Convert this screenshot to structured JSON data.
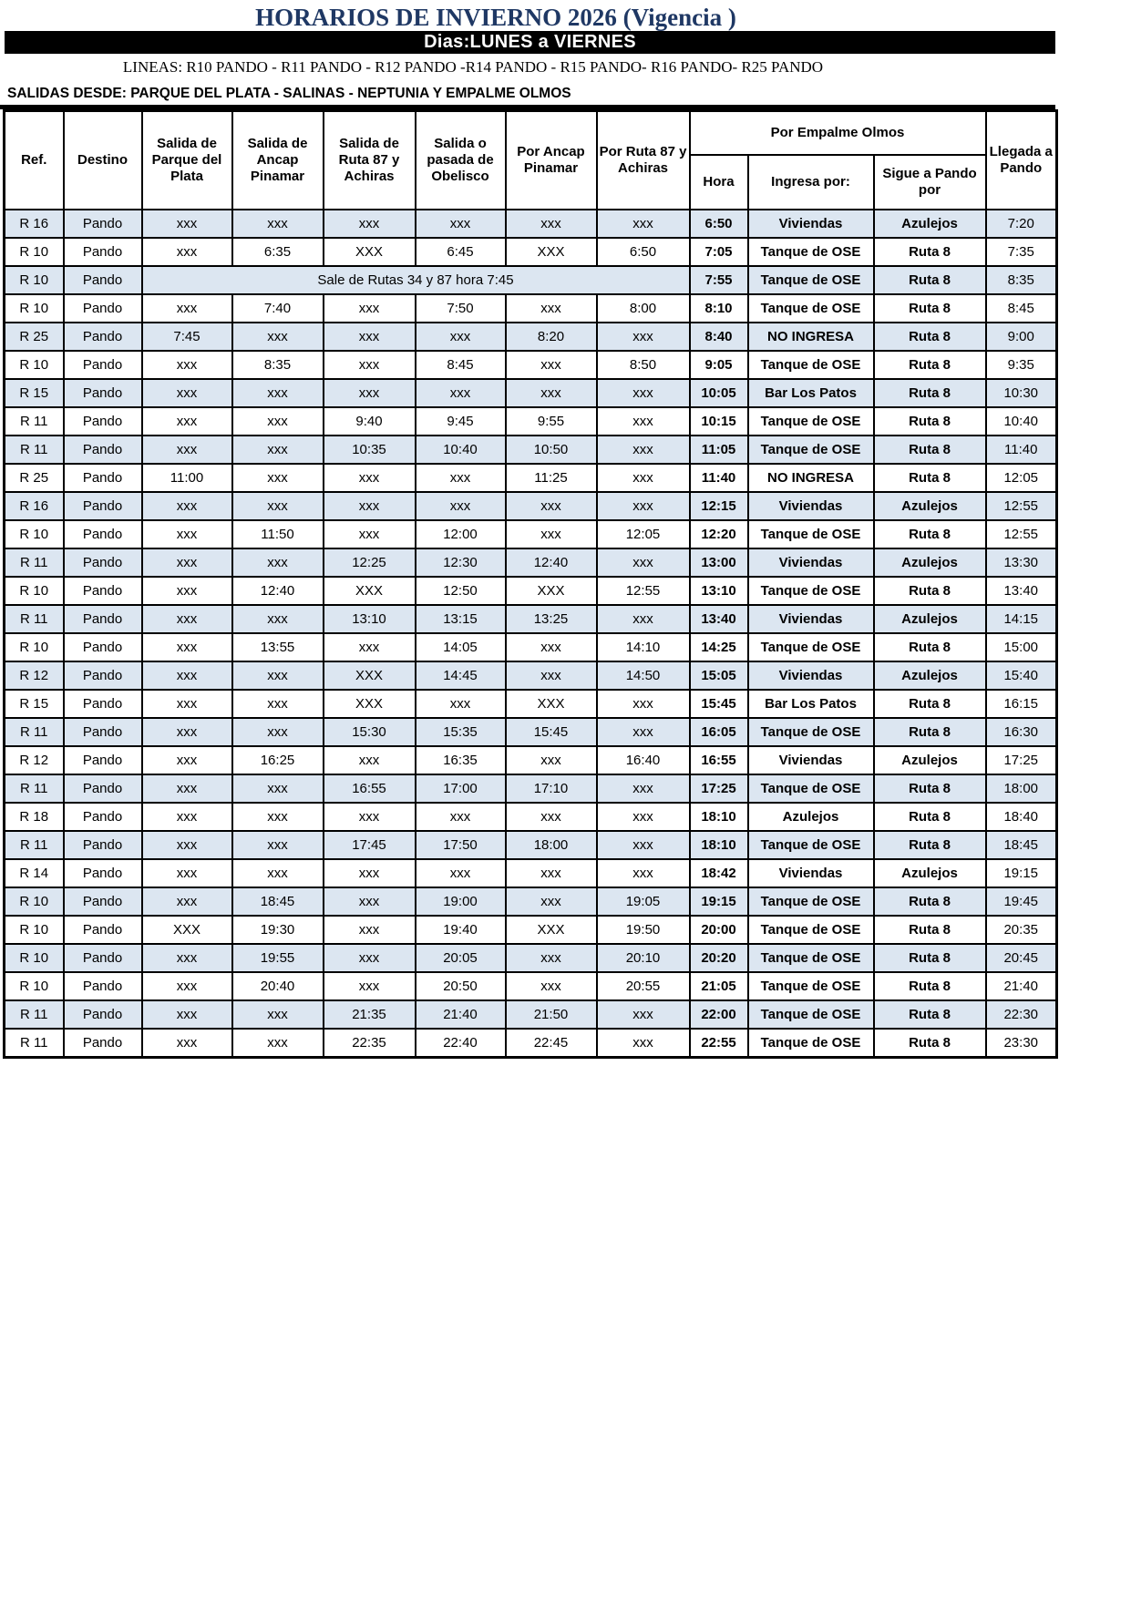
{
  "colors": {
    "title_text": "#1F3864",
    "banner_background": "#000000",
    "banner_text": "#FFFFFF",
    "row_stripe": "#DCE6F1",
    "table_border": "#000000"
  },
  "header": {
    "title": "HORARIOS DE INVIERNO 2026 (Vigencia )",
    "days_banner": "Dias:LUNES a VIERNES",
    "lines": "LINEAS: R10 PANDO - R11 PANDO - R12 PANDO -R14 PANDO - R15 PANDO- R16 PANDO- R25 PANDO",
    "salidas": "SALIDAS DESDE: PARQUE DEL PLATA - SALINAS - NEPTUNIA Y EMPALME OLMOS"
  },
  "table": {
    "headers": {
      "ref": "Ref.",
      "destino": "Destino",
      "salida_parque": "Salida de Parque del Plata",
      "salida_ancap": "Salida de Ancap Pinamar",
      "salida_ruta87": "Salida de Ruta 87 y Achiras",
      "salida_obelisco": "Salida o pasada de Obelisco",
      "por_ancap": "Por Ancap Pinamar",
      "por_ruta87": "Por Ruta 87 y Achiras",
      "por_empalme_group": "Por Empalme Olmos",
      "hora": "Hora",
      "ingresa": "Ingresa por:",
      "sigue": "Sigue a Pando por",
      "llegada": "Llegada a Pando"
    },
    "rows": [
      {
        "ref": "R 16",
        "destino": "Pando",
        "salida_parque": "xxx",
        "salida_ancap": "xxx",
        "salida_ruta87": "xxx",
        "salida_obelisco": "xxx",
        "por_ancap": "xxx",
        "por_ruta87": "xxx",
        "hora": "6:50",
        "ingresa": "Viviendas",
        "sigue": "Azulejos",
        "llegada": "7:20"
      },
      {
        "ref": "R 10",
        "destino": "Pando",
        "salida_parque": "xxx",
        "salida_ancap": "6:35",
        "salida_ruta87": "XXX",
        "salida_obelisco": "6:45",
        "por_ancap": "XXX",
        "por_ruta87": "6:50",
        "hora": "7:05",
        "ingresa": "Tanque de OSE",
        "sigue": "Ruta 8",
        "llegada": "7:35"
      },
      {
        "ref": "R 10",
        "destino": "Pando",
        "merged_note": "Sale de Rutas 34 y 87 hora 7:45",
        "hora": "7:55",
        "ingresa": "Tanque de OSE",
        "sigue": "Ruta 8",
        "llegada": "8:35"
      },
      {
        "ref": "R 10",
        "destino": "Pando",
        "salida_parque": "xxx",
        "salida_ancap": "7:40",
        "salida_ruta87": "xxx",
        "salida_obelisco": "7:50",
        "por_ancap": "xxx",
        "por_ruta87": "8:00",
        "hora": "8:10",
        "ingresa": "Tanque de OSE",
        "sigue": "Ruta 8",
        "llegada": "8:45"
      },
      {
        "ref": "R 25",
        "destino": "Pando",
        "salida_parque": "7:45",
        "salida_ancap": "xxx",
        "salida_ruta87": "xxx",
        "salida_obelisco": "xxx",
        "por_ancap": "8:20",
        "por_ruta87": "xxx",
        "hora": "8:40",
        "ingresa": "NO INGRESA",
        "sigue": "Ruta 8",
        "llegada": "9:00"
      },
      {
        "ref": "R 10",
        "destino": "Pando",
        "salida_parque": "xxx",
        "salida_ancap": "8:35",
        "salida_ruta87": "xxx",
        "salida_obelisco": "8:45",
        "por_ancap": "xxx",
        "por_ruta87": "8:50",
        "hora": "9:05",
        "ingresa": "Tanque de OSE",
        "sigue": "Ruta 8",
        "llegada": "9:35"
      },
      {
        "ref": "R 15",
        "destino": "Pando",
        "salida_parque": "xxx",
        "salida_ancap": "xxx",
        "salida_ruta87": "xxx",
        "salida_obelisco": "xxx",
        "por_ancap": "xxx",
        "por_ruta87": "xxx",
        "hora": "10:05",
        "ingresa": "Bar Los Patos",
        "sigue": "Ruta 8",
        "llegada": "10:30"
      },
      {
        "ref": "R 11",
        "destino": "Pando",
        "salida_parque": "xxx",
        "salida_ancap": "xxx",
        "salida_ruta87": "9:40",
        "salida_obelisco": "9:45",
        "por_ancap": "9:55",
        "por_ruta87": "xxx",
        "hora": "10:15",
        "ingresa": "Tanque de OSE",
        "sigue": "Ruta 8",
        "llegada": "10:40"
      },
      {
        "ref": "R 11",
        "destino": "Pando",
        "salida_parque": "xxx",
        "salida_ancap": "xxx",
        "salida_ruta87": "10:35",
        "salida_obelisco": "10:40",
        "por_ancap": "10:50",
        "por_ruta87": "xxx",
        "hora": "11:05",
        "ingresa": "Tanque de OSE",
        "sigue": "Ruta 8",
        "llegada": "11:40"
      },
      {
        "ref": "R 25",
        "destino": "Pando",
        "salida_parque": "11:00",
        "salida_ancap": "xxx",
        "salida_ruta87": "xxx",
        "salida_obelisco": "xxx",
        "por_ancap": "11:25",
        "por_ruta87": "xxx",
        "hora": "11:40",
        "ingresa": "NO INGRESA",
        "sigue": "Ruta 8",
        "llegada": "12:05"
      },
      {
        "ref": "R 16",
        "destino": "Pando",
        "salida_parque": "xxx",
        "salida_ancap": "xxx",
        "salida_ruta87": "xxx",
        "salida_obelisco": "xxx",
        "por_ancap": "xxx",
        "por_ruta87": "xxx",
        "hora": "12:15",
        "ingresa": "Viviendas",
        "sigue": "Azulejos",
        "llegada": "12:55"
      },
      {
        "ref": "R 10",
        "destino": "Pando",
        "salida_parque": "xxx",
        "salida_ancap": "11:50",
        "salida_ruta87": "xxx",
        "salida_obelisco": "12:00",
        "por_ancap": "xxx",
        "por_ruta87": "12:05",
        "hora": "12:20",
        "ingresa": "Tanque de OSE",
        "sigue": "Ruta 8",
        "llegada": "12:55"
      },
      {
        "ref": "R 11",
        "destino": "Pando",
        "salida_parque": "xxx",
        "salida_ancap": "xxx",
        "salida_ruta87": "12:25",
        "salida_obelisco": "12:30",
        "por_ancap": "12:40",
        "por_ruta87": "xxx",
        "hora": "13:00",
        "ingresa": "Viviendas",
        "sigue": "Azulejos",
        "llegada": "13:30"
      },
      {
        "ref": "R 10",
        "destino": "Pando",
        "salida_parque": "xxx",
        "salida_ancap": "12:40",
        "salida_ruta87": "XXX",
        "salida_obelisco": "12:50",
        "por_ancap": "XXX",
        "por_ruta87": "12:55",
        "hora": "13:10",
        "ingresa": "Tanque de OSE",
        "sigue": "Ruta 8",
        "llegada": "13:40"
      },
      {
        "ref": "R 11",
        "destino": "Pando",
        "salida_parque": "xxx",
        "salida_ancap": "xxx",
        "salida_ruta87": "13:10",
        "salida_obelisco": "13:15",
        "por_ancap": "13:25",
        "por_ruta87": "xxx",
        "hora": "13:40",
        "ingresa": "Viviendas",
        "sigue": "Azulejos",
        "llegada": "14:15"
      },
      {
        "ref": "R 10",
        "destino": "Pando",
        "salida_parque": "xxx",
        "salida_ancap": "13:55",
        "salida_ruta87": "xxx",
        "salida_obelisco": "14:05",
        "por_ancap": "xxx",
        "por_ruta87": "14:10",
        "hora": "14:25",
        "ingresa": "Tanque de OSE",
        "sigue": "Ruta 8",
        "llegada": "15:00"
      },
      {
        "ref": "R 12",
        "destino": "Pando",
        "salida_parque": "xxx",
        "salida_ancap": "xxx",
        "salida_ruta87": "XXX",
        "salida_obelisco": "14:45",
        "por_ancap": "xxx",
        "por_ruta87": "14:50",
        "hora": "15:05",
        "ingresa": "Viviendas",
        "sigue": "Azulejos",
        "llegada": "15:40"
      },
      {
        "ref": "R 15",
        "destino": "Pando",
        "salida_parque": "xxx",
        "salida_ancap": "xxx",
        "salida_ruta87": "XXX",
        "salida_obelisco": "xxx",
        "por_ancap": "XXX",
        "por_ruta87": "xxx",
        "hora": "15:45",
        "ingresa": "Bar Los Patos",
        "sigue": "Ruta 8",
        "llegada": "16:15"
      },
      {
        "ref": "R 11",
        "destino": "Pando",
        "salida_parque": "xxx",
        "salida_ancap": "xxx",
        "salida_ruta87": "15:30",
        "salida_obelisco": "15:35",
        "por_ancap": "15:45",
        "por_ruta87": "xxx",
        "hora": "16:05",
        "ingresa": "Tanque de OSE",
        "sigue": "Ruta 8",
        "llegada": "16:30"
      },
      {
        "ref": "R 12",
        "destino": "Pando",
        "salida_parque": "xxx",
        "salida_ancap": "16:25",
        "salida_ruta87": "xxx",
        "salida_obelisco": "16:35",
        "por_ancap": "xxx",
        "por_ruta87": "16:40",
        "hora": "16:55",
        "ingresa": "Viviendas",
        "sigue": "Azulejos",
        "llegada": "17:25"
      },
      {
        "ref": "R 11",
        "destino": "Pando",
        "salida_parque": "xxx",
        "salida_ancap": "xxx",
        "salida_ruta87": "16:55",
        "salida_obelisco": "17:00",
        "por_ancap": "17:10",
        "por_ruta87": "xxx",
        "hora": "17:25",
        "ingresa": "Tanque de OSE",
        "sigue": "Ruta 8",
        "llegada": "18:00"
      },
      {
        "ref": "R 18",
        "destino": "Pando",
        "salida_parque": "xxx",
        "salida_ancap": "xxx",
        "salida_ruta87": "xxx",
        "salida_obelisco": "xxx",
        "por_ancap": "xxx",
        "por_ruta87": "xxx",
        "hora": "18:10",
        "ingresa": "Azulejos",
        "sigue": "Ruta 8",
        "llegada": "18:40"
      },
      {
        "ref": "R 11",
        "destino": "Pando",
        "salida_parque": "xxx",
        "salida_ancap": "xxx",
        "salida_ruta87": "17:45",
        "salida_obelisco": "17:50",
        "por_ancap": "18:00",
        "por_ruta87": "xxx",
        "hora": "18:10",
        "ingresa": "Tanque de OSE",
        "sigue": "Ruta 8",
        "llegada": "18:45"
      },
      {
        "ref": "R 14",
        "destino": "Pando",
        "salida_parque": "xxx",
        "salida_ancap": "xxx",
        "salida_ruta87": "xxx",
        "salida_obelisco": "xxx",
        "por_ancap": "xxx",
        "por_ruta87": "xxx",
        "hora": "18:42",
        "ingresa": "Viviendas",
        "sigue": "Azulejos",
        "llegada": "19:15"
      },
      {
        "ref": "R 10",
        "destino": "Pando",
        "salida_parque": "xxx",
        "salida_ancap": "18:45",
        "salida_ruta87": "xxx",
        "salida_obelisco": "19:00",
        "por_ancap": "xxx",
        "por_ruta87": "19:05",
        "hora": "19:15",
        "ingresa": "Tanque de OSE",
        "sigue": "Ruta 8",
        "llegada": "19:45"
      },
      {
        "ref": "R 10",
        "destino": "Pando",
        "salida_parque": "XXX",
        "salida_ancap": "19:30",
        "salida_ruta87": "xxx",
        "salida_obelisco": "19:40",
        "por_ancap": "XXX",
        "por_ruta87": "19:50",
        "hora": "20:00",
        "ingresa": "Tanque de OSE",
        "sigue": "Ruta 8",
        "llegada": "20:35"
      },
      {
        "ref": "R 10",
        "destino": "Pando",
        "salida_parque": "xxx",
        "salida_ancap": "19:55",
        "salida_ruta87": "xxx",
        "salida_obelisco": "20:05",
        "por_ancap": "xxx",
        "por_ruta87": "20:10",
        "hora": "20:20",
        "ingresa": "Tanque de OSE",
        "sigue": "Ruta 8",
        "llegada": "20:45"
      },
      {
        "ref": "R 10",
        "destino": "Pando",
        "salida_parque": "xxx",
        "salida_ancap": "20:40",
        "salida_ruta87": "xxx",
        "salida_obelisco": "20:50",
        "por_ancap": "xxx",
        "por_ruta87": "20:55",
        "hora": "21:05",
        "ingresa": "Tanque de OSE",
        "sigue": "Ruta 8",
        "llegada": "21:40"
      },
      {
        "ref": "R 11",
        "destino": "Pando",
        "salida_parque": "xxx",
        "salida_ancap": "xxx",
        "salida_ruta87": "21:35",
        "salida_obelisco": "21:40",
        "por_ancap": "21:50",
        "por_ruta87": "xxx",
        "hora": "22:00",
        "ingresa": "Tanque de OSE",
        "sigue": "Ruta 8",
        "llegada": "22:30"
      },
      {
        "ref": "R 11",
        "destino": "Pando",
        "salida_parque": "xxx",
        "salida_ancap": "xxx",
        "salida_ruta87": "22:35",
        "salida_obelisco": "22:40",
        "por_ancap": "22:45",
        "por_ruta87": "xxx",
        "hora": "22:55",
        "ingresa": "Tanque de OSE",
        "sigue": "Ruta 8",
        "llegada": "23:30"
      }
    ]
  }
}
